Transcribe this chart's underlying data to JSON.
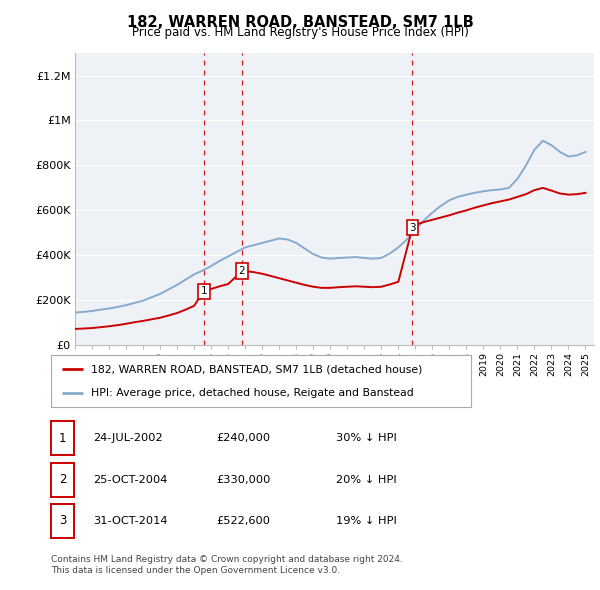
{
  "title": "182, WARREN ROAD, BANSTEAD, SM7 1LB",
  "subtitle": "Price paid vs. HM Land Registry's House Price Index (HPI)",
  "ylim": [
    0,
    1300000
  ],
  "yticks": [
    0,
    200000,
    400000,
    600000,
    800000,
    1000000,
    1200000
  ],
  "ytick_labels": [
    "£0",
    "£200K",
    "£400K",
    "£600K",
    "£800K",
    "£1M",
    "£1.2M"
  ],
  "sales": [
    {
      "date_num": 2002.56,
      "price": 240000,
      "label": "1"
    },
    {
      "date_num": 2004.81,
      "price": 330000,
      "label": "2"
    },
    {
      "date_num": 2014.83,
      "price": 522600,
      "label": "3"
    }
  ],
  "sale_color": "#cc0000",
  "hpi_color": "#88aacc",
  "vline_color": "#cc0000",
  "legend_sale_label": "182, WARREN ROAD, BANSTEAD, SM7 1LB (detached house)",
  "legend_hpi_label": "HPI: Average price, detached house, Reigate and Banstead",
  "table_rows": [
    {
      "num": "1",
      "date": "24-JUL-2002",
      "price": "£240,000",
      "hpi": "30% ↓ HPI"
    },
    {
      "num": "2",
      "date": "25-OCT-2004",
      "price": "£330,000",
      "hpi": "20% ↓ HPI"
    },
    {
      "num": "3",
      "date": "31-OCT-2014",
      "price": "£522,600",
      "hpi": "19% ↓ HPI"
    }
  ],
  "footer": "Contains HM Land Registry data © Crown copyright and database right 2024.\nThis data is licensed under the Open Government Licence v3.0.",
  "bg_color": "#ffffff",
  "plot_bg_color": "#eef2f7",
  "grid_color": "#ffffff",
  "xmin": 1995.0,
  "xmax": 2025.5,
  "hpi_x": [
    1995.0,
    1995.5,
    1996.0,
    1996.5,
    1997.0,
    1997.5,
    1998.0,
    1998.5,
    1999.0,
    1999.5,
    2000.0,
    2000.5,
    2001.0,
    2001.5,
    2002.0,
    2002.5,
    2003.0,
    2003.5,
    2004.0,
    2004.5,
    2005.0,
    2005.5,
    2006.0,
    2006.5,
    2007.0,
    2007.5,
    2008.0,
    2008.5,
    2009.0,
    2009.5,
    2010.0,
    2010.5,
    2011.0,
    2011.5,
    2012.0,
    2012.5,
    2013.0,
    2013.5,
    2014.0,
    2014.5,
    2015.0,
    2015.5,
    2016.0,
    2016.5,
    2017.0,
    2017.5,
    2018.0,
    2018.5,
    2019.0,
    2019.5,
    2020.0,
    2020.5,
    2021.0,
    2021.5,
    2022.0,
    2022.5,
    2023.0,
    2023.5,
    2024.0,
    2024.5,
    2025.0
  ],
  "hpi_y": [
    145000,
    148000,
    152000,
    158000,
    163000,
    170000,
    178000,
    188000,
    198000,
    213000,
    228000,
    248000,
    268000,
    292000,
    315000,
    332000,
    352000,
    375000,
    395000,
    415000,
    435000,
    445000,
    455000,
    465000,
    475000,
    470000,
    455000,
    430000,
    405000,
    390000,
    385000,
    388000,
    390000,
    392000,
    388000,
    385000,
    388000,
    408000,
    435000,
    470000,
    515000,
    555000,
    590000,
    620000,
    645000,
    660000,
    670000,
    678000,
    685000,
    690000,
    693000,
    700000,
    740000,
    800000,
    870000,
    910000,
    890000,
    860000,
    840000,
    845000,
    860000
  ],
  "sale_x": [
    1995.0,
    1995.5,
    1996.0,
    1996.5,
    1997.0,
    1997.5,
    1998.0,
    1998.5,
    1999.0,
    1999.5,
    2000.0,
    2000.5,
    2001.0,
    2001.5,
    2002.0,
    2002.56,
    2003.0,
    2003.5,
    2004.0,
    2004.81,
    2005.0,
    2005.5,
    2006.0,
    2006.5,
    2007.0,
    2007.5,
    2008.0,
    2008.5,
    2009.0,
    2009.5,
    2010.0,
    2010.5,
    2011.0,
    2011.5,
    2012.0,
    2012.5,
    2013.0,
    2013.5,
    2014.0,
    2014.83,
    2015.0,
    2015.5,
    2016.0,
    2016.5,
    2017.0,
    2017.5,
    2018.0,
    2018.5,
    2019.0,
    2019.5,
    2020.0,
    2020.5,
    2021.0,
    2021.5,
    2022.0,
    2022.5,
    2023.0,
    2023.5,
    2024.0,
    2024.5,
    2025.0
  ],
  "sale_y": [
    72000,
    74000,
    76000,
    80000,
    84000,
    89000,
    95000,
    102000,
    108000,
    115000,
    122000,
    132000,
    143000,
    158000,
    175000,
    240000,
    250000,
    262000,
    272000,
    330000,
    330000,
    325000,
    318000,
    308000,
    298000,
    288000,
    278000,
    268000,
    260000,
    255000,
    255000,
    258000,
    260000,
    262000,
    260000,
    258000,
    260000,
    270000,
    282000,
    522600,
    535000,
    548000,
    558000,
    568000,
    578000,
    590000,
    600000,
    612000,
    622000,
    632000,
    640000,
    648000,
    660000,
    672000,
    690000,
    700000,
    688000,
    675000,
    670000,
    672000,
    678000
  ]
}
